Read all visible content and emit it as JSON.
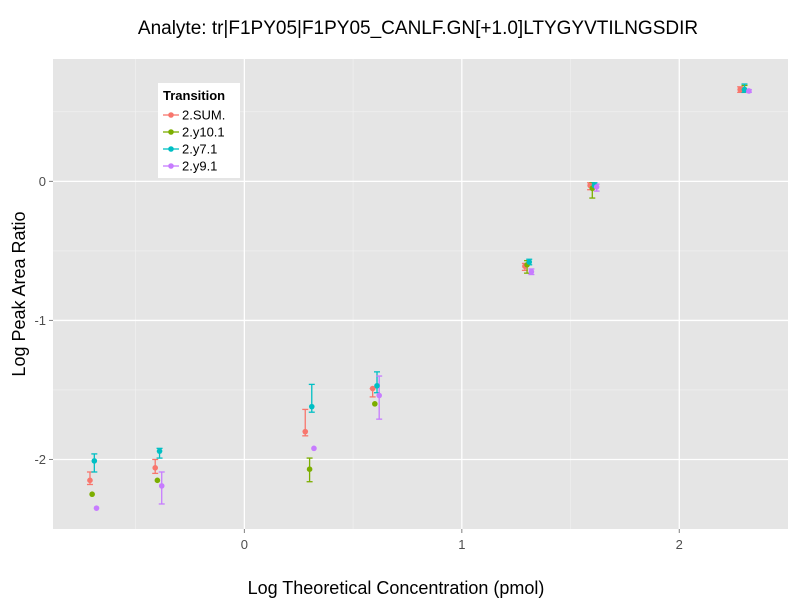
{
  "chart_data": {
    "type": "scatter",
    "title": "Analyte: tr|F1PY05|F1PY05_CANLF.GN[+1.0]LTYGYVTILNGSDIR",
    "xlabel": "Log Theoretical Concentration (pmol)",
    "ylabel": "Log Peak Area Ratio",
    "xlim": [
      -0.88,
      2.5
    ],
    "ylim": [
      -2.5,
      0.88
    ],
    "x_ticks": [
      0,
      1,
      2
    ],
    "y_ticks": [
      -2,
      -1,
      0
    ],
    "x_tick_labels": [
      "0",
      "1",
      "2"
    ],
    "y_tick_labels": [
      "-2",
      "-1",
      "0"
    ],
    "grid": true,
    "legend": {
      "title": "Transition",
      "placement": "top-left",
      "entries": [
        "2.SUM.",
        "2.y10.1",
        "2.y7.1",
        "2.y9.1"
      ]
    },
    "series": [
      {
        "name": "2.SUM.",
        "color": "#F8766D",
        "points": [
          {
            "x": -0.71,
            "y": -2.15,
            "lo": -2.18,
            "hi": -2.09
          },
          {
            "x": -0.41,
            "y": -2.06,
            "lo": -2.1,
            "hi": -2.0
          },
          {
            "x": 0.28,
            "y": -1.8,
            "lo": -1.83,
            "hi": -1.64
          },
          {
            "x": 0.59,
            "y": -1.49,
            "lo": -1.55,
            "hi": -1.49
          },
          {
            "x": 1.29,
            "y": -0.61,
            "lo": -0.64,
            "hi": -0.59
          },
          {
            "x": 1.59,
            "y": -0.03,
            "lo": -0.06,
            "hi": -0.01
          },
          {
            "x": 2.28,
            "y": 0.66,
            "lo": 0.64,
            "hi": 0.68
          }
        ]
      },
      {
        "name": "2.y10.1",
        "color": "#7CAE00",
        "points": [
          {
            "x": -0.7,
            "y": -2.25,
            "lo": -2.25,
            "hi": -2.25
          },
          {
            "x": -0.4,
            "y": -2.15,
            "lo": -2.15,
            "hi": -2.15
          },
          {
            "x": 0.3,
            "y": -2.07,
            "lo": -2.16,
            "hi": -1.99
          },
          {
            "x": 0.6,
            "y": -1.6,
            "lo": -1.6,
            "hi": -1.6
          },
          {
            "x": 1.3,
            "y": -0.6,
            "lo": -0.66,
            "hi": -0.57
          },
          {
            "x": 1.6,
            "y": -0.05,
            "lo": -0.12,
            "hi": -0.01
          },
          {
            "x": 2.3,
            "y": 0.66,
            "lo": 0.64,
            "hi": 0.69
          }
        ]
      },
      {
        "name": "2.y7.1",
        "color": "#00BFC4",
        "points": [
          {
            "x": -0.69,
            "y": -2.01,
            "lo": -2.09,
            "hi": -1.96
          },
          {
            "x": -0.39,
            "y": -1.94,
            "lo": -1.99,
            "hi": -1.92
          },
          {
            "x": 0.31,
            "y": -1.62,
            "lo": -1.66,
            "hi": -1.46
          },
          {
            "x": 0.61,
            "y": -1.47,
            "lo": -1.52,
            "hi": -1.37
          },
          {
            "x": 1.31,
            "y": -0.58,
            "lo": -0.6,
            "hi": -0.56
          },
          {
            "x": 1.61,
            "y": -0.03,
            "lo": -0.05,
            "hi": -0.01
          },
          {
            "x": 2.3,
            "y": 0.66,
            "lo": 0.64,
            "hi": 0.7
          }
        ]
      },
      {
        "name": "2.y9.1",
        "color": "#C77CFF",
        "points": [
          {
            "x": -0.68,
            "y": -2.35,
            "lo": -2.35,
            "hi": -2.35
          },
          {
            "x": -0.38,
            "y": -2.19,
            "lo": -2.32,
            "hi": -2.09
          },
          {
            "x": 0.32,
            "y": -1.92,
            "lo": -1.92,
            "hi": -1.92
          },
          {
            "x": 0.62,
            "y": -1.54,
            "lo": -1.71,
            "hi": -1.4
          },
          {
            "x": 1.32,
            "y": -0.65,
            "lo": -0.67,
            "hi": -0.63
          },
          {
            "x": 1.62,
            "y": -0.04,
            "lo": -0.07,
            "hi": -0.02
          },
          {
            "x": 2.32,
            "y": 0.65,
            "lo": 0.64,
            "hi": 0.66
          }
        ]
      }
    ]
  }
}
